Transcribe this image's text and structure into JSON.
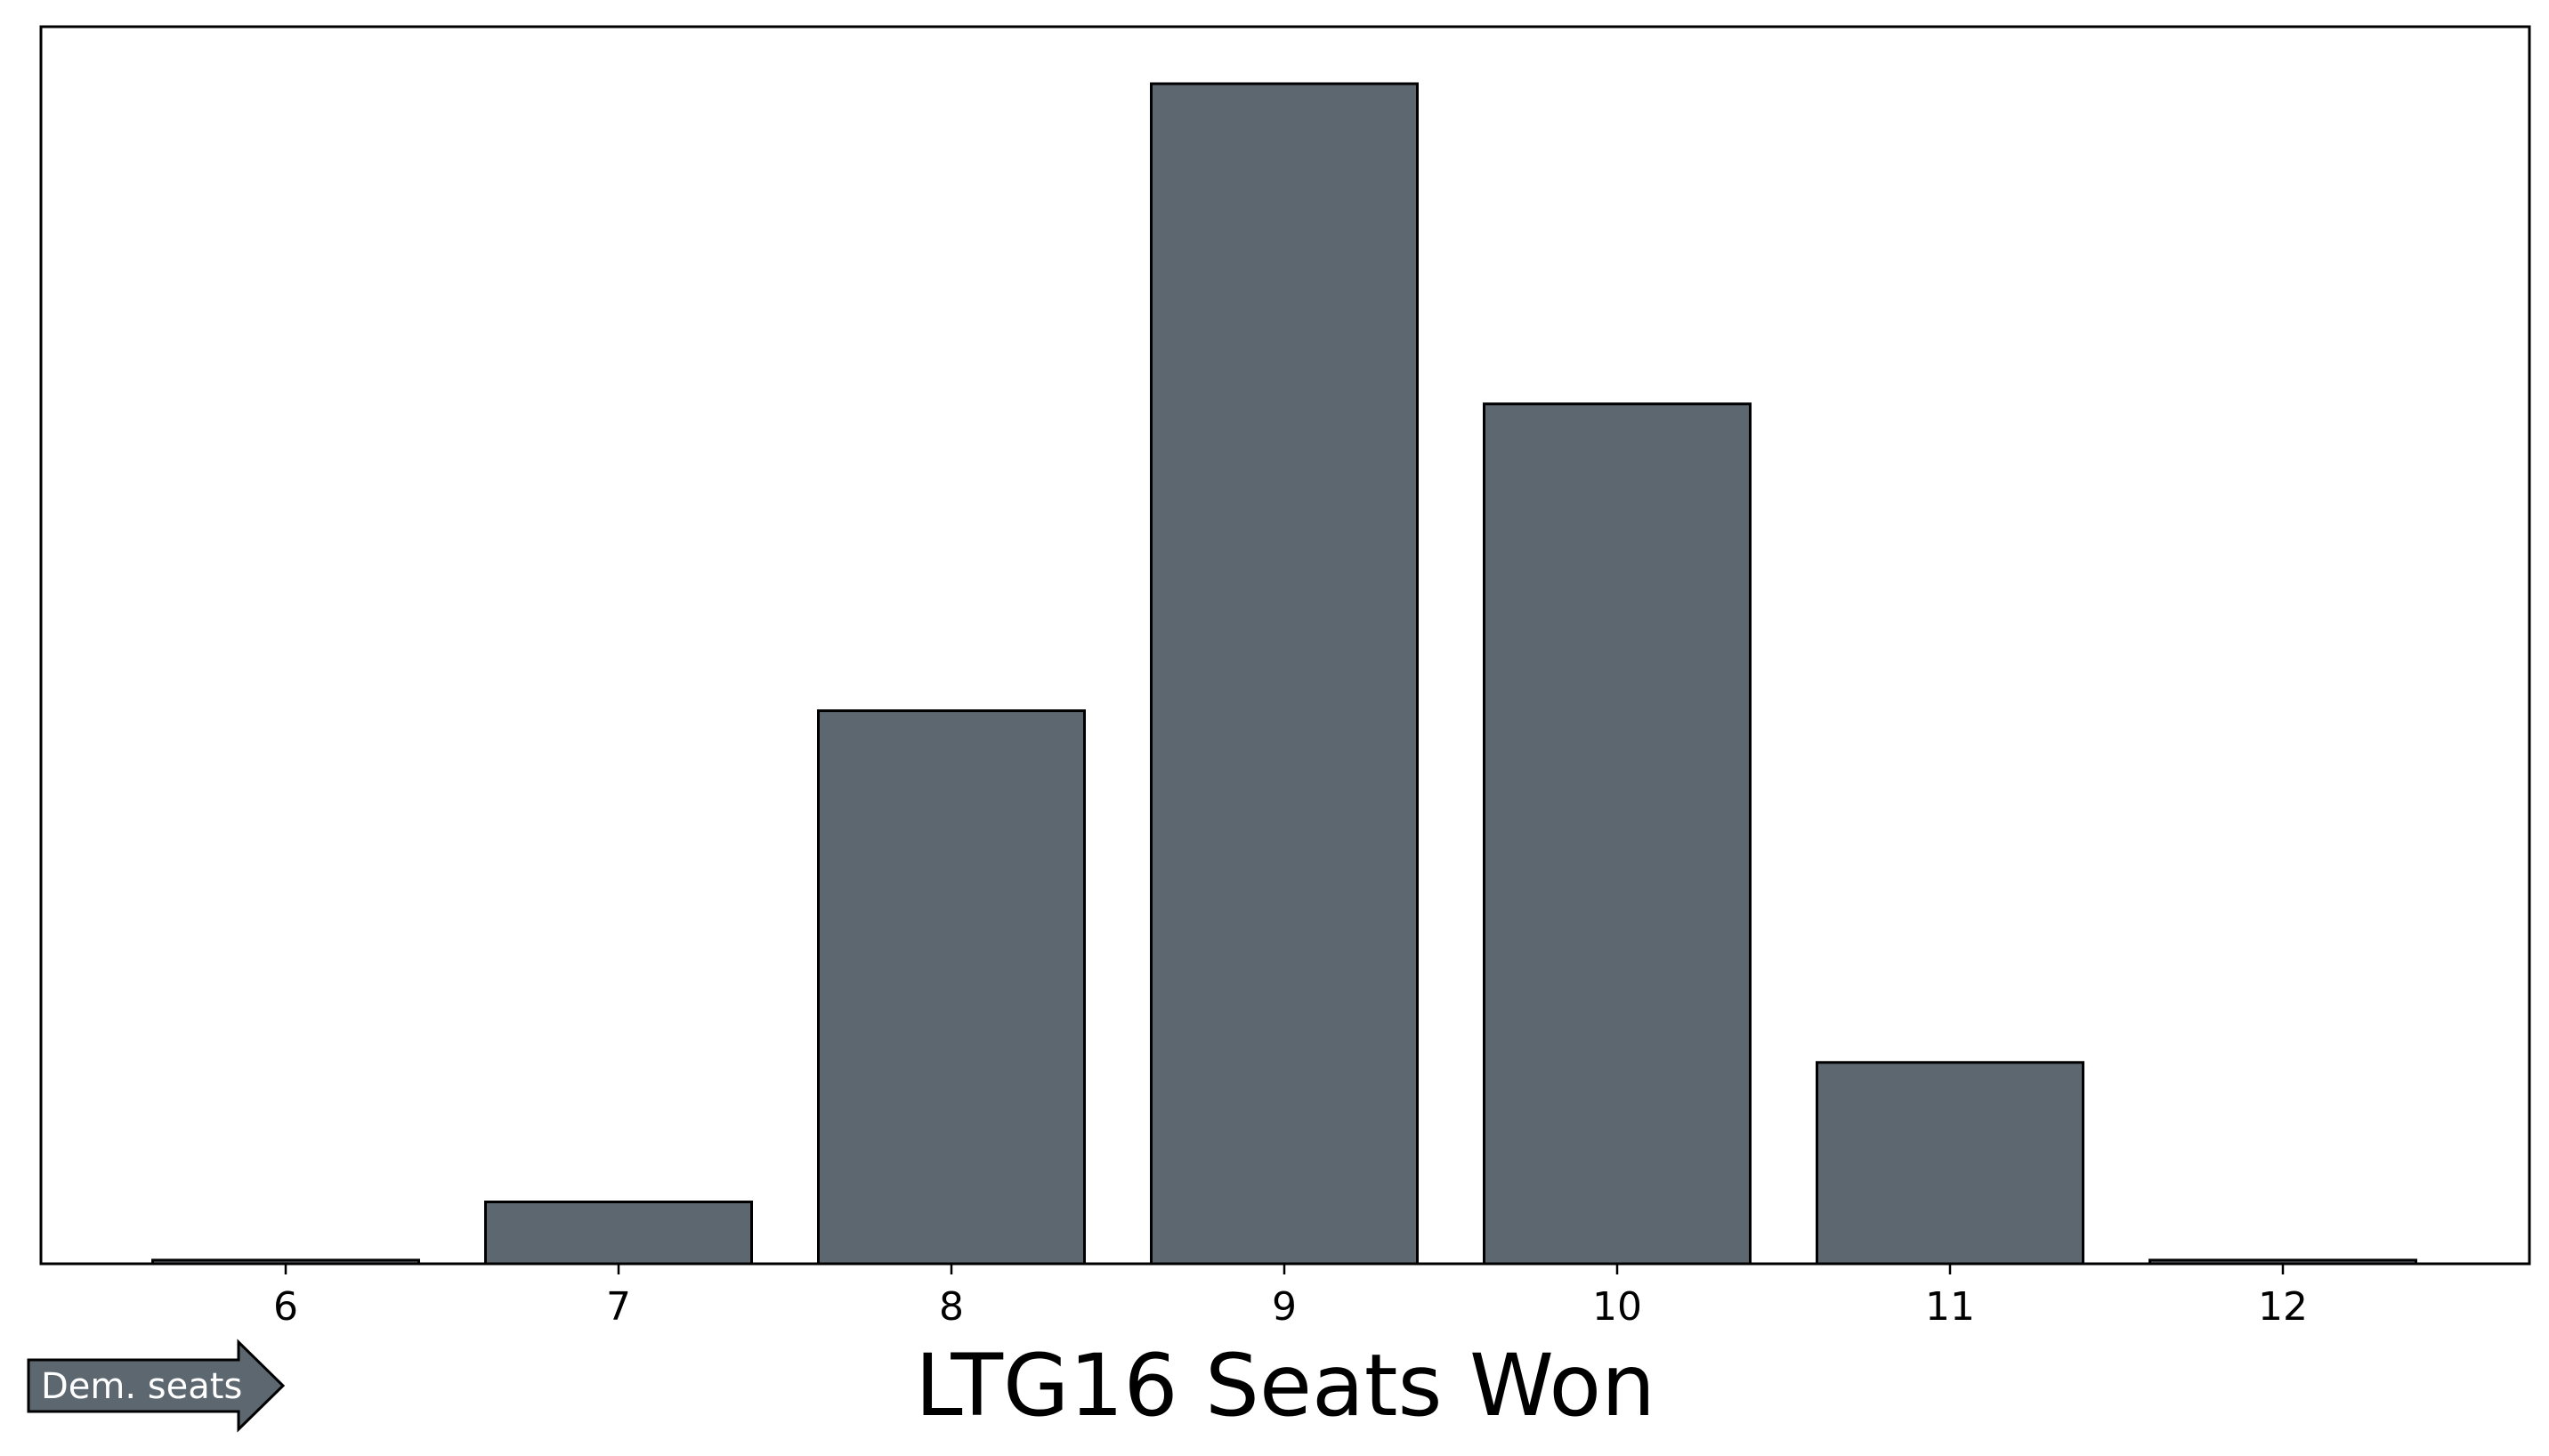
{
  "chart_data": {
    "type": "bar",
    "categories": [
      "6",
      "7",
      "8",
      "9",
      "10",
      "11",
      "12"
    ],
    "values": [
      0.3,
      5.1,
      45.6,
      97.3,
      70.9,
      16.6,
      0.3
    ],
    "title": "",
    "xlabel": "LTG16 Seats Won",
    "ylabel": "",
    "ylim": [
      0,
      102
    ],
    "grid": false,
    "bar_color": "#5c6770",
    "edge_color": "#000000"
  },
  "annotation": {
    "arrow_label": "Dem. seats",
    "arrow_color": "#5c6770"
  }
}
